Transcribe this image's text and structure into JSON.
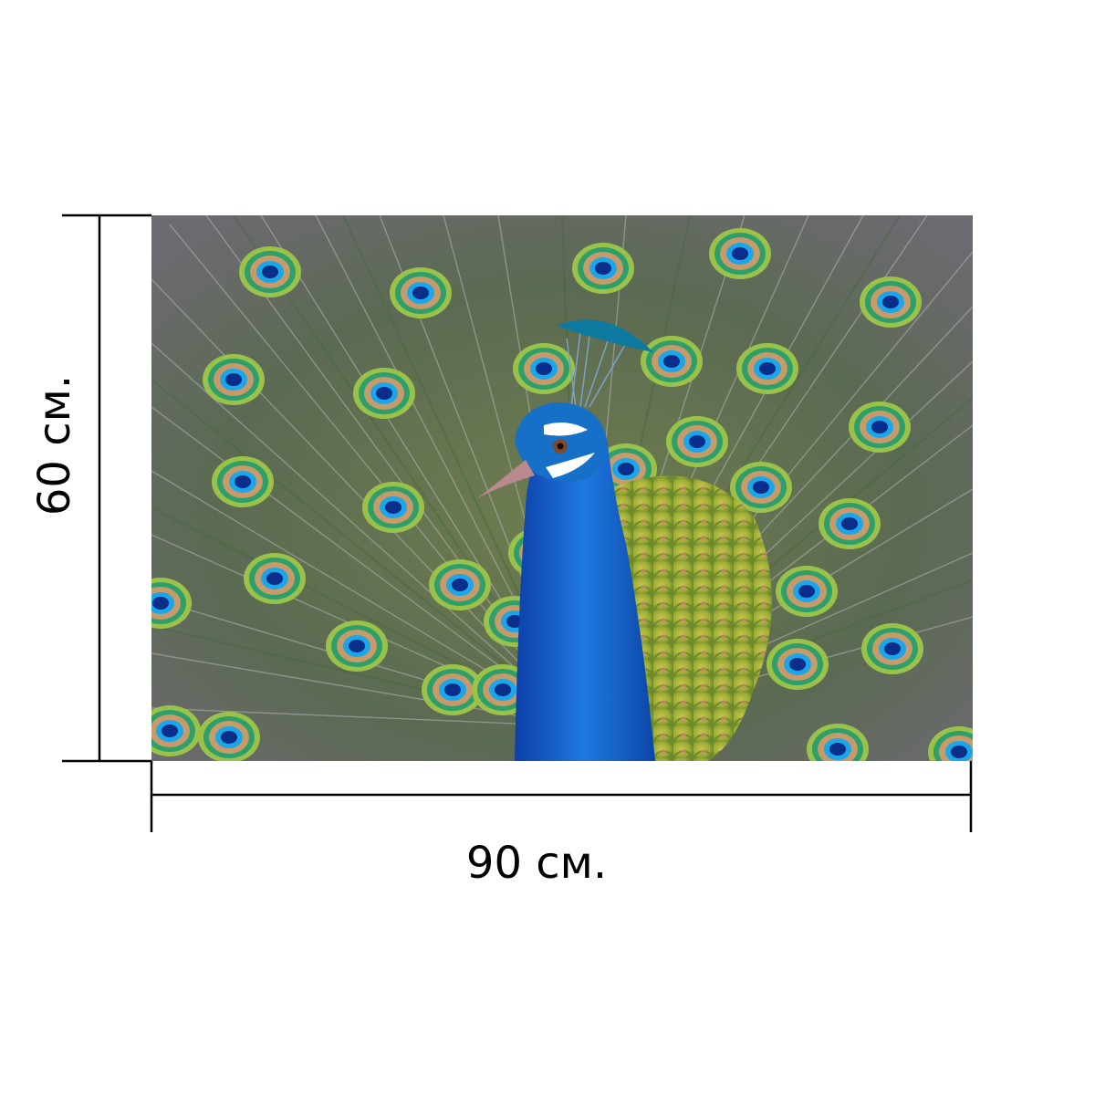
{
  "dimensions": {
    "height_label": "60 см.",
    "width_label": "90 см."
  },
  "photo": {
    "subject": "peacock",
    "colors": {
      "neck": "#1f6fd6",
      "crest": "#0e7aa0",
      "breast": "#a9b83a",
      "eye_outer": "#2e9e6a",
      "eye_ring": "#c79a6a",
      "eye_inner": "#1a9fe0",
      "background": "#5a6e52"
    }
  }
}
